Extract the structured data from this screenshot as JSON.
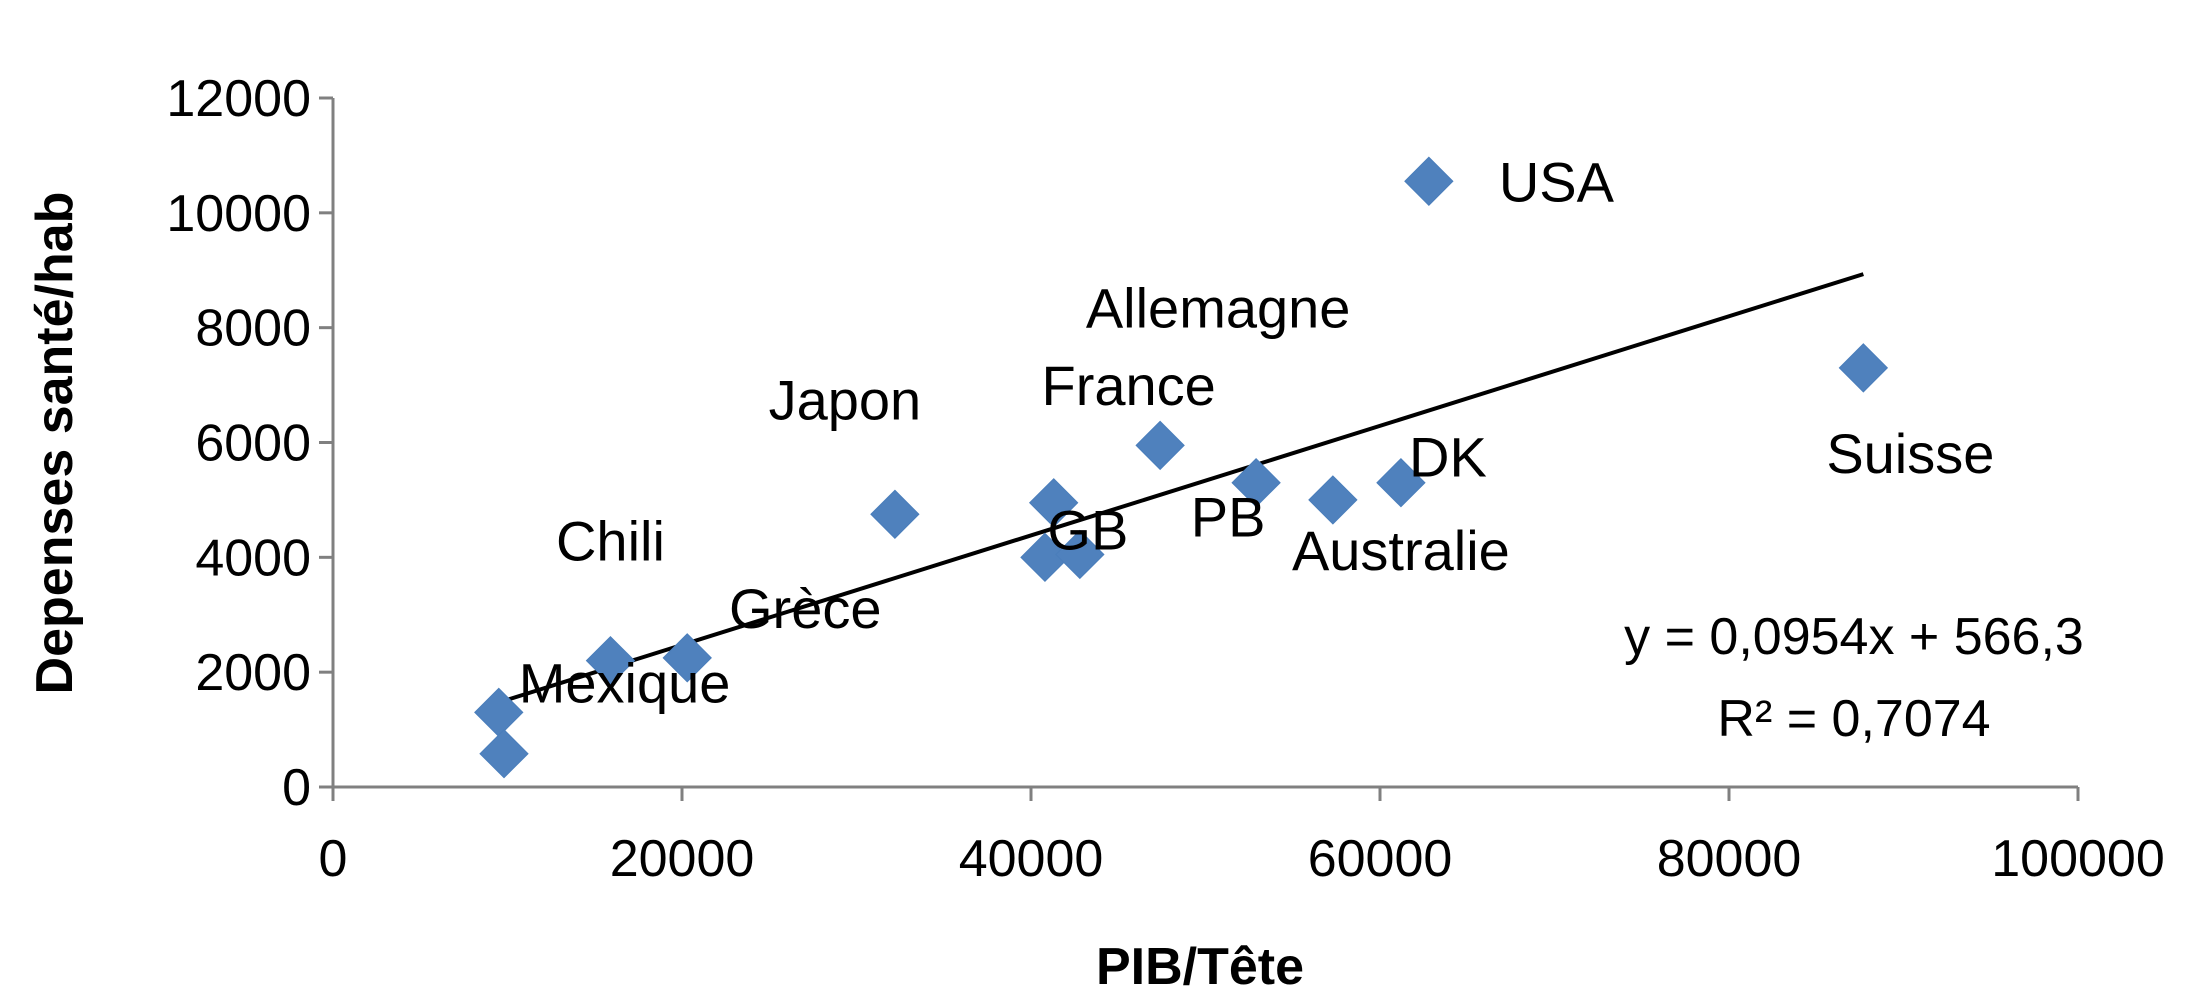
{
  "chart_data": {
    "type": "scatter",
    "xlabel": "PIB/Tête",
    "ylabel": "Depenses santé/hab",
    "xlim": [
      0,
      100000
    ],
    "ylim": [
      0,
      12000
    ],
    "xticks": [
      "0",
      "20000",
      "40000",
      "60000",
      "80000",
      "100000"
    ],
    "yticks": [
      "0",
      "2000",
      "4000",
      "6000",
      "8000",
      "10000",
      "12000"
    ],
    "grid": false,
    "legend": "none",
    "colors": {
      "marker": "#4F81BD",
      "trendline": "#000000",
      "axis": "#808080"
    },
    "points": [
      {
        "x": 9500,
        "y": 1300,
        "label": "Mexique"
      },
      {
        "x": 9800,
        "y": 580,
        "label": ""
      },
      {
        "x": 15900,
        "y": 2200,
        "label": "Chili"
      },
      {
        "x": 20300,
        "y": 2250,
        "label": "Grèce"
      },
      {
        "x": 32200,
        "y": 4750,
        "label": "Japon"
      },
      {
        "x": 41300,
        "y": 4950,
        "label": "France"
      },
      {
        "x": 40800,
        "y": 4000,
        "label": ""
      },
      {
        "x": 42800,
        "y": 4050,
        "label": "GB"
      },
      {
        "x": 47400,
        "y": 5950,
        "label": "Allemagne"
      },
      {
        "x": 52900,
        "y": 5300,
        "label": "PB"
      },
      {
        "x": 57300,
        "y": 5000,
        "label": "Australie"
      },
      {
        "x": 61200,
        "y": 5300,
        "label": "DK"
      },
      {
        "x": 62800,
        "y": 10550,
        "label": "USA"
      },
      {
        "x": 87700,
        "y": 7300,
        "label": "Suisse"
      }
    ],
    "trendline": {
      "type": "linear",
      "slope": 0.0954,
      "intercept": 566.3,
      "x_range": [
        9500,
        87700
      ],
      "equation": "y = 0,0954x + 566,3",
      "r_squared": "R² = 0,7074"
    }
  }
}
